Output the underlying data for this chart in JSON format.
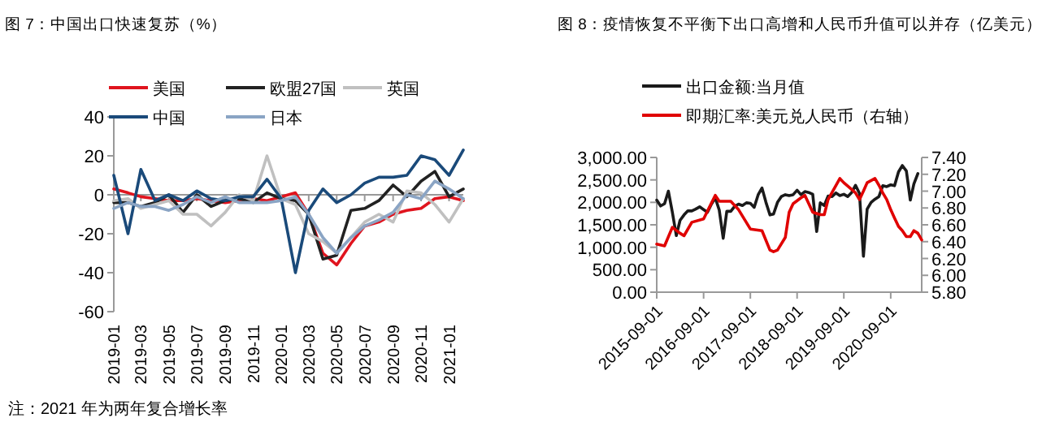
{
  "chart_data": [
    {
      "type": "line",
      "title": "图 7：中国出口快速复苏（%）",
      "x": [
        "2019-01",
        "2019-02",
        "2019-03",
        "2019-04",
        "2019-05",
        "2019-06",
        "2019-07",
        "2019-08",
        "2019-09",
        "2019-10",
        "2019-11",
        "2019-12",
        "2020-01",
        "2020-02",
        "2020-03",
        "2020-04",
        "2020-05",
        "2020-06",
        "2020-07",
        "2020-08",
        "2020-09",
        "2020-10",
        "2020-11",
        "2020-12",
        "2021-01",
        "2021-02"
      ],
      "xlim": [
        "2019-01",
        "2021-02"
      ],
      "xticks": [
        "2019-01",
        "2019-03",
        "2019-05",
        "2019-07",
        "2019-09",
        "2019-11",
        "2020-01",
        "2020-03",
        "2020-05",
        "2020-07",
        "2020-09",
        "2020-11",
        "2021-01"
      ],
      "ylim": [
        -60,
        40
      ],
      "yticks": [
        -60,
        -40,
        -20,
        0,
        20,
        40
      ],
      "legend": "top",
      "series": [
        {
          "name": "美国",
          "color": "#e0141e",
          "values": [
            3,
            1,
            -1,
            -2,
            -3,
            -3,
            -2,
            -3,
            -4,
            -3,
            -2,
            -3,
            -1,
            1,
            -10,
            -30,
            -36,
            -25,
            -16,
            -14,
            -10,
            -8,
            -7,
            -2,
            -1,
            -3
          ]
        },
        {
          "name": "欧盟27国",
          "color": "#222222",
          "values": [
            -4,
            -4,
            -6,
            -4,
            0,
            -9,
            0,
            -6,
            -3,
            -2,
            -4,
            1,
            -2,
            -3,
            -10,
            -33,
            -31,
            -8,
            -7,
            -3,
            5,
            -1,
            7,
            12,
            -1,
            3
          ]
        },
        {
          "name": "英国",
          "color": "#c0c0c0",
          "values": [
            -3,
            -2,
            -7,
            -5,
            -3,
            -10,
            -10,
            -16,
            -9,
            0,
            -3,
            20,
            -2,
            -5,
            -20,
            -24,
            -30,
            -22,
            -14,
            -10,
            -14,
            2,
            1,
            -5,
            -14,
            -2
          ]
        },
        {
          "name": "中国",
          "color": "#1a4a7a",
          "values": [
            10,
            -20,
            13,
            -3,
            0,
            -3,
            2,
            -2,
            -3,
            -1,
            -1,
            8,
            -2,
            -40,
            -8,
            3,
            -4,
            0,
            6,
            9,
            9,
            10,
            20,
            18,
            10,
            23
          ]
        },
        {
          "name": "日本",
          "color": "#8aa4c4",
          "values": [
            -7,
            -4,
            -6,
            -6,
            -8,
            -5,
            -1,
            -4,
            -1,
            -4,
            -4,
            -4,
            -3,
            -1,
            -10,
            -22,
            -30,
            -22,
            -16,
            -13,
            -9,
            0,
            -2,
            7,
            3,
            -2
          ]
        }
      ],
      "annotations": [
        "注：2021 年为两年复合增长率"
      ]
    },
    {
      "type": "line",
      "title": "图 8：疫情恢复不平衡下出口高增和人民币升值可以并存（亿美元）",
      "xlim": [
        "2015-09-01",
        "2021-05-01"
      ],
      "xticks": [
        "2015-09-01",
        "2016-09-01",
        "2017-09-01",
        "2018-09-01",
        "2019-09-01",
        "2020-09-01"
      ],
      "ylim": [
        0,
        3000
      ],
      "yticks": [
        {
          "value": 0,
          "label": "0.00"
        },
        {
          "value": 500,
          "label": "500.00"
        },
        {
          "value": 1000,
          "label": "1,000.00"
        },
        {
          "value": 1500,
          "label": "1,500.00"
        },
        {
          "value": 2000,
          "label": "2,000.00"
        },
        {
          "value": 2500,
          "label": "2,500.00"
        },
        {
          "value": 3000,
          "label": "3,000.00"
        }
      ],
      "y2lim": [
        5.8,
        7.4
      ],
      "y2ticks": [
        {
          "value": 5.8,
          "label": "5.80"
        },
        {
          "value": 6.0,
          "label": "6.00"
        },
        {
          "value": 6.2,
          "label": "6.20"
        },
        {
          "value": 6.4,
          "label": "6.40"
        },
        {
          "value": 6.6,
          "label": "6.60"
        },
        {
          "value": 6.8,
          "label": "6.80"
        },
        {
          "value": 7.0,
          "label": "7.00"
        },
        {
          "value": 7.2,
          "label": "7.20"
        },
        {
          "value": 7.4,
          "label": "7.40"
        }
      ],
      "legend": "top left",
      "series": [
        {
          "name": "出口金额:当月值",
          "color": "#1a1a1a",
          "x": [
            "2015-09",
            "2015-10",
            "2015-11",
            "2015-12",
            "2016-01",
            "2016-02",
            "2016-03",
            "2016-04",
            "2016-05",
            "2016-06",
            "2016-07",
            "2016-08",
            "2016-09",
            "2016-10",
            "2016-11",
            "2016-12",
            "2017-01",
            "2017-02",
            "2017-03",
            "2017-04",
            "2017-05",
            "2017-06",
            "2017-07",
            "2017-08",
            "2017-09",
            "2017-10",
            "2017-11",
            "2017-12",
            "2018-01",
            "2018-02",
            "2018-03",
            "2018-04",
            "2018-05",
            "2018-06",
            "2018-07",
            "2018-08",
            "2018-09",
            "2018-10",
            "2018-11",
            "2018-12",
            "2019-01",
            "2019-02",
            "2019-03",
            "2019-04",
            "2019-05",
            "2019-06",
            "2019-07",
            "2019-08",
            "2019-09",
            "2019-10",
            "2019-11",
            "2019-12",
            "2020-01",
            "2020-02",
            "2020-03",
            "2020-04",
            "2020-05",
            "2020-06",
            "2020-07",
            "2020-08",
            "2020-09",
            "2020-10",
            "2020-11",
            "2020-12",
            "2021-01",
            "2021-02",
            "2021-03",
            "2021-04"
          ],
          "values": [
            2050,
            1920,
            1970,
            2250,
            1780,
            1260,
            1600,
            1720,
            1810,
            1810,
            1850,
            1900,
            1840,
            1780,
            1960,
            2100,
            1830,
            1200,
            1800,
            1800,
            1910,
            1960,
            1930,
            1990,
            1980,
            1890,
            2170,
            2320,
            2000,
            1720,
            1740,
            2000,
            2130,
            2170,
            2150,
            2170,
            2270,
            2170,
            2240,
            2220,
            2180,
            1350,
            1990,
            1930,
            2140,
            2130,
            2210,
            2150,
            2180,
            2130,
            2220,
            2380,
            2200,
            800,
            1850,
            2000,
            2070,
            2130,
            2370,
            2350,
            2390,
            2370,
            2680,
            2820,
            2700,
            2050,
            2410,
            2640
          ]
        },
        {
          "name": "即期汇率:美元兑人民币（右轴）",
          "color": "#e00000",
          "axis": "y2",
          "x": [
            "2015-09",
            "2015-11",
            "2016-01",
            "2016-03",
            "2016-04",
            "2016-06",
            "2016-09",
            "2016-12",
            "2017-01",
            "2017-04",
            "2017-06",
            "2017-09",
            "2017-12",
            "2018-02",
            "2018-03",
            "2018-04",
            "2018-06",
            "2018-07",
            "2018-08",
            "2018-10",
            "2018-11",
            "2019-01",
            "2019-03",
            "2019-04",
            "2019-05",
            "2019-08",
            "2019-09",
            "2019-11",
            "2019-12",
            "2020-01",
            "2020-02",
            "2020-03",
            "2020-05",
            "2020-06",
            "2020-07",
            "2020-08",
            "2020-09",
            "2020-10",
            "2020-11",
            "2020-12",
            "2021-01",
            "2021-02",
            "2021-03",
            "2021-04",
            "2021-05"
          ],
          "values": [
            6.37,
            6.35,
            6.57,
            6.5,
            6.47,
            6.63,
            6.67,
            6.95,
            6.88,
            6.88,
            6.78,
            6.55,
            6.53,
            6.3,
            6.28,
            6.3,
            6.45,
            6.75,
            6.85,
            6.92,
            6.95,
            6.75,
            6.72,
            6.72,
            6.9,
            7.15,
            7.1,
            7.02,
            6.98,
            6.9,
            7.0,
            7.1,
            7.15,
            7.07,
            6.98,
            6.9,
            6.78,
            6.68,
            6.58,
            6.53,
            6.46,
            6.46,
            6.53,
            6.5,
            6.42
          ]
        }
      ]
    }
  ]
}
